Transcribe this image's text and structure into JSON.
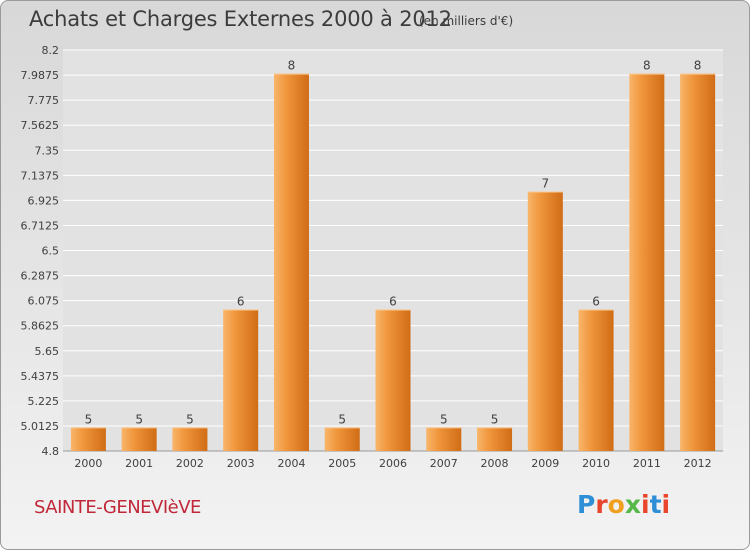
{
  "title": "Achats et Charges Externes 2000 à 2012",
  "unit_note": "(en milliers d'€)",
  "footer": {
    "commune": "SAINTE-GENEVIèVE",
    "brand": "Proxiti",
    "brand_colors": [
      "#2f8fd6",
      "#e8452c",
      "#f0a020",
      "#56b848",
      "#e8452c",
      "#2f8fd6",
      "#e8452c"
    ]
  },
  "colors": {
    "bar": "#f0963c",
    "bar_light": "#f8b56a",
    "bar_dark": "#d06c16",
    "grid": "#ffffff",
    "axis_text": "#404040"
  },
  "chart_data": {
    "type": "bar",
    "categories": [
      "2000",
      "2001",
      "2002",
      "2003",
      "2004",
      "2005",
      "2006",
      "2007",
      "2008",
      "2009",
      "2010",
      "2011",
      "2012"
    ],
    "values": [
      5,
      5,
      5,
      6,
      8,
      5,
      6,
      5,
      5,
      7,
      6,
      8,
      8
    ],
    "y_ticks": [
      "8.2",
      "7.9875",
      "7.775",
      "7.5625",
      "7.35",
      "7.1375",
      "6.925",
      "6.7125",
      "6.5",
      "6.2875",
      "6.075",
      "5.8625",
      "5.65",
      "5.4375",
      "5.225",
      "5.0125",
      "4.8"
    ],
    "ylim": [
      4.8,
      8.2
    ],
    "grid": true
  }
}
